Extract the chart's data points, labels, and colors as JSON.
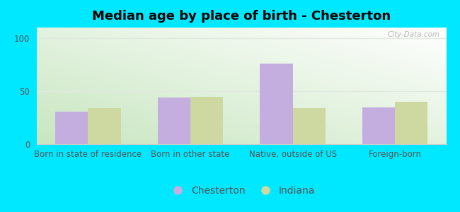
{
  "title": "Median age by place of birth - Chesterton",
  "categories": [
    "Born in state of residence",
    "Born in other state",
    "Native, outside of US",
    "Foreign-born"
  ],
  "chesterton_values": [
    31,
    44,
    76,
    35
  ],
  "indiana_values": [
    34,
    45,
    34,
    40
  ],
  "chesterton_color": "#c4aee0",
  "indiana_color": "#cdd9a0",
  "ylim": [
    0,
    110
  ],
  "yticks": [
    0,
    50,
    100
  ],
  "background_color": "#00e8ff",
  "legend_labels": [
    "Chesterton",
    "Indiana"
  ],
  "bar_width": 0.32,
  "title_fontsize": 13,
  "tick_fontsize": 8.5,
  "legend_fontsize": 10,
  "watermark": "City-Data.com",
  "grad_colors": [
    "#c8e6c0",
    "#eafff5",
    "#f5fffc",
    "#ffffff"
  ],
  "grid_color": "#e0e8e0",
  "spine_color": "#cccccc"
}
